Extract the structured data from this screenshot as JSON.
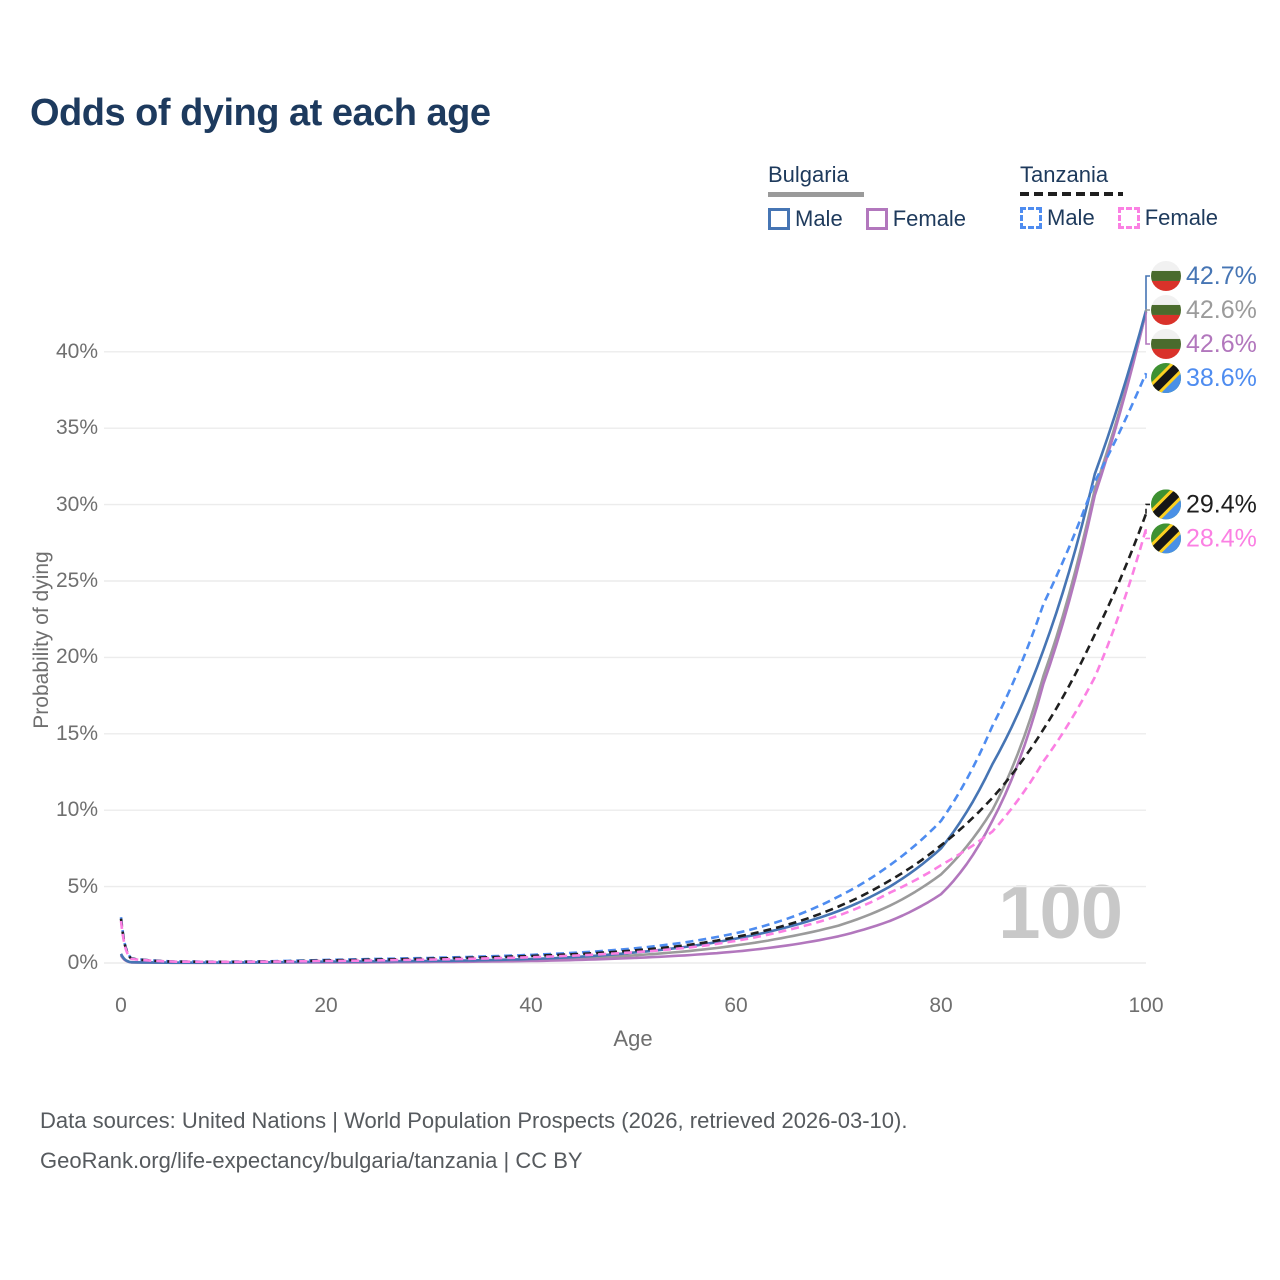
{
  "title": "Odds of dying at each age",
  "legend": {
    "groups": [
      {
        "country": "Bulgaria",
        "line_style": "solid",
        "items": [
          {
            "label": "Male",
            "series": "bulgaria-male"
          },
          {
            "label": "Female",
            "series": "bulgaria-female"
          }
        ]
      },
      {
        "country": "Tanzania",
        "line_style": "dashed",
        "items": [
          {
            "label": "Male",
            "series": "tanzania-male"
          },
          {
            "label": "Female",
            "series": "tanzania-female"
          }
        ]
      }
    ]
  },
  "watermark_age": "100",
  "chart_data": {
    "type": "line",
    "title": "Odds of dying at each age",
    "xlabel": "Age",
    "ylabel": "Probability of dying",
    "xlim": [
      0,
      100
    ],
    "ylim_pct": [
      0,
      44
    ],
    "grid": "horizontal",
    "legend_position": "top-right",
    "x_ticks": [
      0,
      20,
      40,
      60,
      80,
      100
    ],
    "y_ticks_pct": [
      0,
      5,
      10,
      15,
      20,
      25,
      30,
      35,
      40
    ],
    "y_tick_labels": [
      "0%",
      "5%",
      "10%",
      "15%",
      "20%",
      "25%",
      "30%",
      "35%",
      "40%"
    ],
    "x": [
      0,
      1,
      5,
      10,
      15,
      20,
      25,
      30,
      35,
      40,
      45,
      50,
      55,
      60,
      65,
      70,
      75,
      80,
      85,
      90,
      95,
      100
    ],
    "series": [
      {
        "id": "bulgaria-both",
        "name": "Bulgaria (both sexes)",
        "country": "Bulgaria",
        "sex": "Both",
        "color": "#9b9b9b",
        "dash": "solid",
        "flag": "bulgaria",
        "end_label": "42.6%",
        "values_pct": [
          0.55,
          0.045,
          0.018,
          0.018,
          0.04,
          0.06,
          0.08,
          0.1,
          0.13,
          0.19,
          0.31,
          0.5,
          0.76,
          1.15,
          1.7,
          2.45,
          3.75,
          5.8,
          10.0,
          18.8,
          31.0,
          42.6
        ]
      },
      {
        "id": "bulgaria-female",
        "name": "Bulgaria female",
        "country": "Bulgaria",
        "sex": "Female",
        "color": "#b277bd",
        "dash": "solid",
        "flag": "bulgaria",
        "end_label": "42.6%",
        "values_pct": [
          0.5,
          0.04,
          0.015,
          0.015,
          0.03,
          0.035,
          0.045,
          0.06,
          0.09,
          0.13,
          0.21,
          0.33,
          0.5,
          0.75,
          1.15,
          1.75,
          2.75,
          4.5,
          9.3,
          18.3,
          30.6,
          42.6
        ]
      },
      {
        "id": "bulgaria-male",
        "name": "Bulgaria male",
        "country": "Bulgaria",
        "sex": "Male",
        "color": "#4675b4",
        "dash": "solid",
        "flag": "bulgaria",
        "end_label": "42.7%",
        "values_pct": [
          0.6,
          0.05,
          0.02,
          0.02,
          0.05,
          0.09,
          0.11,
          0.13,
          0.18,
          0.26,
          0.42,
          0.68,
          1.05,
          1.6,
          2.35,
          3.4,
          5.0,
          7.5,
          13.0,
          20.5,
          32.0,
          42.7
        ]
      },
      {
        "id": "tanzania-male",
        "name": "Tanzania male",
        "country": "Tanzania",
        "sex": "Male",
        "color": "#4e8cf0",
        "dash": "dashed",
        "flag": "tanzania",
        "end_label": "38.6%",
        "values_pct": [
          3.0,
          0.3,
          0.1,
          0.08,
          0.12,
          0.2,
          0.27,
          0.33,
          0.42,
          0.53,
          0.7,
          0.95,
          1.35,
          1.95,
          2.9,
          4.35,
          6.4,
          9.3,
          15.5,
          23.5,
          31.5,
          38.6
        ]
      },
      {
        "id": "tanzania-both",
        "name": "Tanzania (both sexes)",
        "country": "Tanzania",
        "sex": "Both",
        "color": "#1f1f1f",
        "dash": "dashed",
        "flag": "tanzania",
        "end_label": "29.4%",
        "values_pct": [
          2.9,
          0.28,
          0.09,
          0.07,
          0.1,
          0.17,
          0.22,
          0.28,
          0.36,
          0.46,
          0.6,
          0.82,
          1.15,
          1.7,
          2.5,
          3.7,
          5.4,
          7.7,
          10.8,
          15.3,
          21.5,
          29.4
        ]
      },
      {
        "id": "tanzania-female",
        "name": "Tanzania female",
        "country": "Tanzania",
        "sex": "Female",
        "color": "#fb80e3",
        "dash": "dashed",
        "flag": "tanzania",
        "end_label": "28.4%",
        "values_pct": [
          2.75,
          0.26,
          0.09,
          0.07,
          0.09,
          0.13,
          0.17,
          0.22,
          0.29,
          0.38,
          0.51,
          0.7,
          0.98,
          1.45,
          2.15,
          3.1,
          4.6,
          6.4,
          8.6,
          13.2,
          18.7,
          28.4
        ]
      }
    ],
    "flag_colors": {
      "bulgaria": {
        "white": "#f1f1f1",
        "green": "#4a6b2d",
        "red": "#d9322a"
      },
      "tanzania": {
        "green": "#3e9132",
        "yellow": "#fcd020",
        "black": "#161616",
        "blue": "#4a90e6"
      }
    }
  },
  "footer": {
    "line1": "Data sources: United Nations | World Population Prospects (2026, retrieved 2026-03-10).",
    "line2": "GeoRank.org/life-expectancy/bulgaria/tanzania | CC BY"
  }
}
